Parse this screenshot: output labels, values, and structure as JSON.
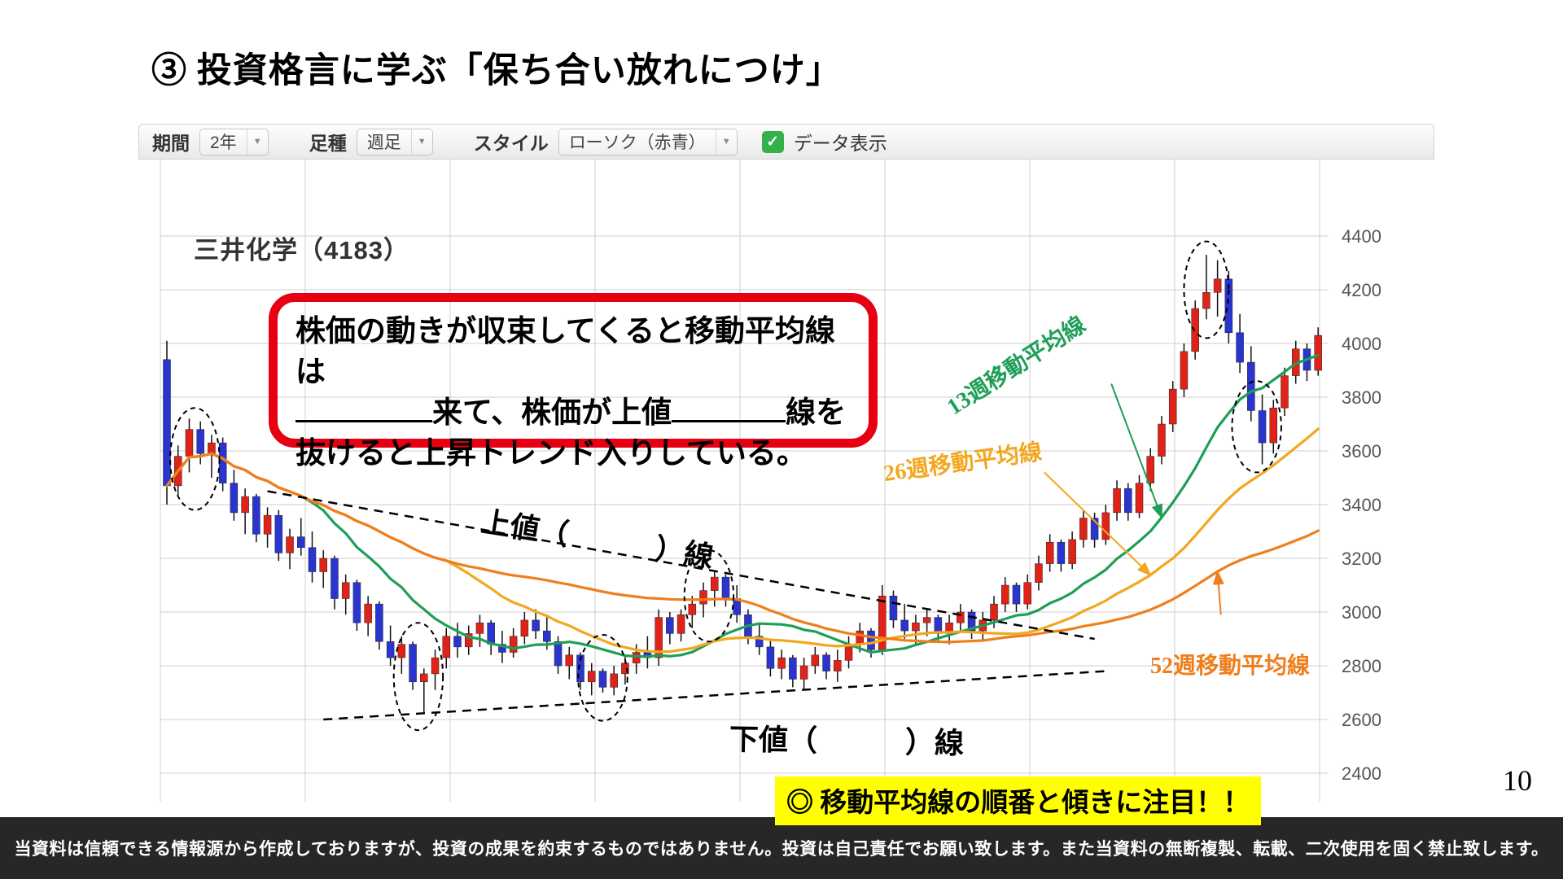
{
  "slide": {
    "title": "③ 投資格言に学ぶ「保ち合い放れにつけ」",
    "page_number": "10",
    "footer": "当資料は信頼できる情報源から作成しておりますが、投資の成果を約束するものではありません。投資は自己責任でお願い致します。また当資料の無断複製、転載、二次使用を固く禁止致します。"
  },
  "toolbar": {
    "period_label": "期間",
    "period_value": "2年",
    "bar_type_label": "足種",
    "bar_type_value": "週足",
    "style_label": "スタイル",
    "style_value": "ローソク（赤青）",
    "data_toggle_label": "データ表示",
    "data_toggle_checked": true
  },
  "icons": {
    "check": "✓",
    "dropdown_arrow": "▼"
  },
  "annotations": {
    "red_box": {
      "line1": "株価の動きが収束してくると移動平均線は",
      "line2_after_first_blank": "来て、株価が上値",
      "line2_end": "線を",
      "line3": "抜けると上昇トレンド入りしている。"
    },
    "upper_trend_open": "上値（",
    "upper_trend_close": "）線",
    "lower_trend_open": "下値（",
    "lower_trend_close": "）線",
    "ma13_label": "13週移動平均線",
    "ma26_label": "26週移動平均線",
    "ma52_label": "52週移動平均線",
    "highlight_note": "◎ 移動平均線の順番と傾きに注目！！"
  },
  "chart_data": {
    "type": "candlestick",
    "title": "三井化学（4183）",
    "interval": "週足",
    "range": "2年",
    "ylim": [
      2400,
      4600
    ],
    "y_ticks": [
      2400,
      2600,
      2800,
      3000,
      3200,
      3400,
      3600,
      3800,
      4000,
      4200,
      4400
    ],
    "grid": true,
    "up_color": "#e02318",
    "down_color": "#2a35cf",
    "wick_color": "#111111",
    "candles_ohlc": [
      [
        3940,
        4010,
        3400,
        3470
      ],
      [
        3470,
        3620,
        3430,
        3580
      ],
      [
        3580,
        3720,
        3520,
        3680
      ],
      [
        3680,
        3710,
        3550,
        3590
      ],
      [
        3590,
        3660,
        3500,
        3630
      ],
      [
        3630,
        3650,
        3450,
        3480
      ],
      [
        3480,
        3530,
        3340,
        3370
      ],
      [
        3370,
        3460,
        3290,
        3430
      ],
      [
        3430,
        3440,
        3260,
        3290
      ],
      [
        3290,
        3390,
        3240,
        3360
      ],
      [
        3360,
        3380,
        3190,
        3220
      ],
      [
        3220,
        3310,
        3160,
        3280
      ],
      [
        3280,
        3350,
        3210,
        3240
      ],
      [
        3240,
        3300,
        3110,
        3150
      ],
      [
        3150,
        3230,
        3090,
        3200
      ],
      [
        3200,
        3210,
        3010,
        3050
      ],
      [
        3050,
        3140,
        2990,
        3110
      ],
      [
        3110,
        3120,
        2930,
        2960
      ],
      [
        2960,
        3060,
        2910,
        3030
      ],
      [
        3030,
        3040,
        2860,
        2890
      ],
      [
        2890,
        2950,
        2800,
        2830
      ],
      [
        2830,
        2910,
        2770,
        2880
      ],
      [
        2880,
        2890,
        2710,
        2740
      ],
      [
        2740,
        2790,
        2620,
        2770
      ],
      [
        2770,
        2860,
        2710,
        2830
      ],
      [
        2830,
        2940,
        2790,
        2910
      ],
      [
        2910,
        2960,
        2830,
        2870
      ],
      [
        2870,
        2950,
        2840,
        2920
      ],
      [
        2920,
        2990,
        2870,
        2960
      ],
      [
        2960,
        2970,
        2840,
        2880
      ],
      [
        2880,
        2930,
        2810,
        2850
      ],
      [
        2850,
        2940,
        2830,
        2910
      ],
      [
        2910,
        3000,
        2880,
        2970
      ],
      [
        2970,
        3010,
        2900,
        2930
      ],
      [
        2930,
        2990,
        2860,
        2890
      ],
      [
        2890,
        2910,
        2770,
        2800
      ],
      [
        2800,
        2870,
        2750,
        2840
      ],
      [
        2840,
        2850,
        2710,
        2740
      ],
      [
        2740,
        2810,
        2690,
        2780
      ],
      [
        2780,
        2790,
        2700,
        2720
      ],
      [
        2720,
        2800,
        2690,
        2770
      ],
      [
        2770,
        2840,
        2730,
        2810
      ],
      [
        2810,
        2880,
        2770,
        2850
      ],
      [
        2850,
        2910,
        2790,
        2830
      ],
      [
        2830,
        3010,
        2800,
        2980
      ],
      [
        2980,
        3000,
        2880,
        2920
      ],
      [
        2920,
        3010,
        2890,
        2990
      ],
      [
        2990,
        3060,
        2940,
        3030
      ],
      [
        3030,
        3110,
        2980,
        3080
      ],
      [
        3080,
        3150,
        3020,
        3130
      ],
      [
        3130,
        3140,
        3020,
        3050
      ],
      [
        3050,
        3100,
        2960,
        2990
      ],
      [
        2990,
        3010,
        2880,
        2910
      ],
      [
        2910,
        2960,
        2840,
        2870
      ],
      [
        2870,
        2900,
        2760,
        2790
      ],
      [
        2790,
        2860,
        2750,
        2830
      ],
      [
        2830,
        2840,
        2720,
        2750
      ],
      [
        2750,
        2830,
        2710,
        2800
      ],
      [
        2800,
        2870,
        2770,
        2840
      ],
      [
        2840,
        2850,
        2750,
        2780
      ],
      [
        2780,
        2860,
        2740,
        2820
      ],
      [
        2820,
        2910,
        2790,
        2880
      ],
      [
        2880,
        2960,
        2850,
        2930
      ],
      [
        2930,
        2940,
        2830,
        2860
      ],
      [
        2860,
        3100,
        2840,
        3060
      ],
      [
        3060,
        3080,
        2940,
        2970
      ],
      [
        2970,
        3030,
        2900,
        2930
      ],
      [
        2930,
        2990,
        2880,
        2960
      ],
      [
        2960,
        3010,
        2910,
        2980
      ],
      [
        2980,
        2990,
        2890,
        2920
      ],
      [
        2920,
        2990,
        2880,
        2960
      ],
      [
        2960,
        3030,
        2930,
        3000
      ],
      [
        3000,
        3010,
        2900,
        2930
      ],
      [
        2930,
        3000,
        2890,
        2970
      ],
      [
        2970,
        3060,
        2940,
        3030
      ],
      [
        3030,
        3130,
        3000,
        3100
      ],
      [
        3100,
        3110,
        3000,
        3030
      ],
      [
        3030,
        3140,
        3010,
        3110
      ],
      [
        3110,
        3210,
        3080,
        3180
      ],
      [
        3180,
        3290,
        3150,
        3260
      ],
      [
        3260,
        3270,
        3150,
        3180
      ],
      [
        3180,
        3300,
        3160,
        3270
      ],
      [
        3270,
        3380,
        3240,
        3350
      ],
      [
        3350,
        3370,
        3240,
        3270
      ],
      [
        3270,
        3400,
        3250,
        3370
      ],
      [
        3370,
        3490,
        3340,
        3460
      ],
      [
        3460,
        3480,
        3340,
        3370
      ],
      [
        3370,
        3510,
        3350,
        3480
      ],
      [
        3480,
        3610,
        3450,
        3580
      ],
      [
        3580,
        3730,
        3550,
        3700
      ],
      [
        3700,
        3860,
        3670,
        3830
      ],
      [
        3830,
        4000,
        3800,
        3970
      ],
      [
        3970,
        4160,
        3940,
        4130
      ],
      [
        4130,
        4330,
        4090,
        4190
      ],
      [
        4190,
        4310,
        4100,
        4240
      ],
      [
        4240,
        4270,
        4000,
        4040
      ],
      [
        4040,
        4110,
        3890,
        3930
      ],
      [
        3930,
        3990,
        3710,
        3750
      ],
      [
        3750,
        3810,
        3550,
        3630
      ],
      [
        3630,
        3790,
        3590,
        3760
      ],
      [
        3760,
        3910,
        3730,
        3880
      ],
      [
        3880,
        4010,
        3850,
        3980
      ],
      [
        3980,
        4000,
        3860,
        3900
      ],
      [
        3900,
        4060,
        3880,
        4030
      ]
    ],
    "moving_averages": [
      {
        "name": "13週移動平均線",
        "window": 13,
        "color": "#1e9e57"
      },
      {
        "name": "26週移動平均線",
        "window": 26,
        "color": "#f2a71e"
      },
      {
        "name": "52週移動平均線",
        "window": 52,
        "color": "#ef7f1c"
      }
    ],
    "trendlines": [
      {
        "name": "上値抵抗線",
        "from": [
          9,
          3450
        ],
        "to": [
          83,
          2900
        ]
      },
      {
        "name": "下値支持線",
        "from": [
          14,
          2600
        ],
        "to": [
          84,
          2780
        ]
      }
    ],
    "highlight_ellipses": [
      {
        "week": 2.5,
        "price": 3570,
        "rx_weeks": 2.2,
        "ry_price": 190
      },
      {
        "week": 22.5,
        "price": 2760,
        "rx_weeks": 2.2,
        "ry_price": 200
      },
      {
        "week": 39,
        "price": 2755,
        "rx_weeks": 2.2,
        "ry_price": 160
      },
      {
        "week": 48.5,
        "price": 3060,
        "rx_weeks": 2.2,
        "ry_price": 170
      },
      {
        "week": 93,
        "price": 4200,
        "rx_weeks": 2.0,
        "ry_price": 180
      },
      {
        "week": 97.5,
        "price": 3690,
        "rx_weeks": 2.2,
        "ry_price": 170
      }
    ],
    "pointer_arrows": [
      {
        "color": "#1e9e57",
        "from": [
          84.5,
          3850
        ],
        "target_week": 89,
        "ma_window": 13
      },
      {
        "color": "#f2a71e",
        "from": [
          78.5,
          3520
        ],
        "target_week": 88,
        "ma_window": 26
      },
      {
        "color": "#ef7f1c",
        "from": [
          94.3,
          2990
        ],
        "target_week": 94,
        "ma_window": 52
      }
    ]
  }
}
